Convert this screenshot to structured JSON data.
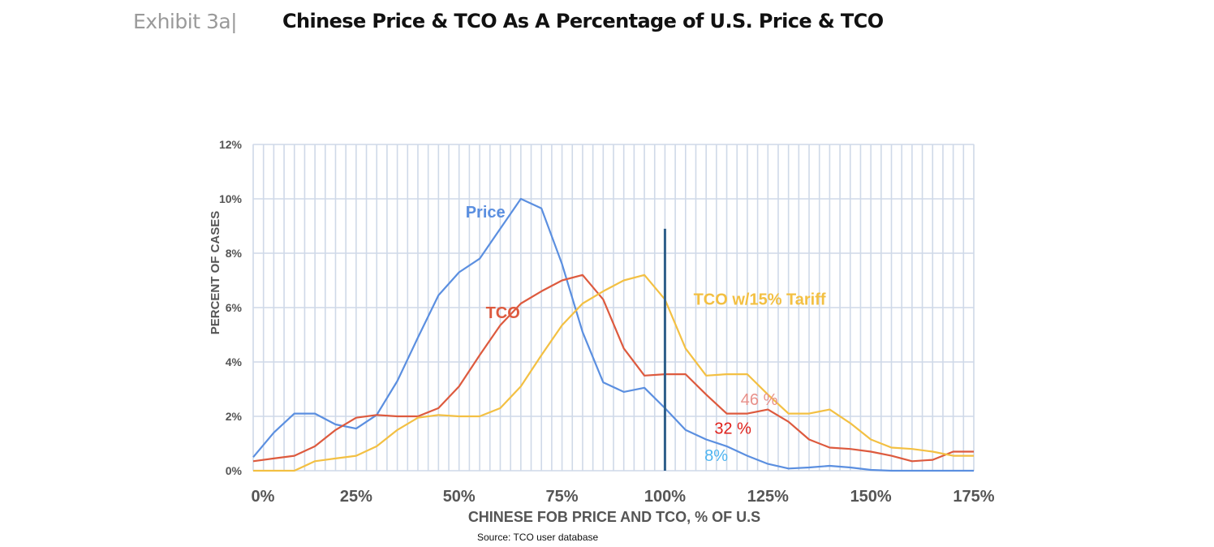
{
  "header": {
    "exhibit_label": "Exhibit 3a|",
    "title": "Chinese Price & TCO As A Percentage of U.S. Price & TCO"
  },
  "source_note": "Source: TCO user database",
  "colors": {
    "price": "#5b8fe0",
    "tco": "#dd5a3e",
    "tco_tariff": "#f3c043",
    "marker": "#2f5f8a",
    "grid": "#cfd9e8",
    "label_46": "#e8908a",
    "label_32": "#e0201a",
    "label_8": "#4fb4f0"
  },
  "chart_data": {
    "type": "line",
    "title": "Chinese Price & TCO As A Percentage of U.S. Price & TCO",
    "xlabel": "CHINESE FOB PRICE AND TCO, % OF U.S",
    "ylabel": "PERCENT OF CASES",
    "xlim": [
      0,
      175
    ],
    "ylim": [
      0,
      12
    ],
    "x_ticks": [
      0,
      25,
      50,
      75,
      100,
      125,
      150,
      175
    ],
    "x_tick_labels": [
      "0%",
      "25%",
      "50%",
      "75%",
      "100%",
      "125%",
      "150%",
      "175%"
    ],
    "y_ticks": [
      0,
      2,
      4,
      6,
      8,
      10,
      12
    ],
    "y_tick_labels": [
      "0%",
      "2%",
      "4%",
      "6%",
      "8%",
      "10%",
      "12%"
    ],
    "vertical_marker_x": 100,
    "x": [
      0,
      5,
      10,
      15,
      20,
      25,
      30,
      35,
      40,
      45,
      50,
      55,
      60,
      65,
      70,
      75,
      80,
      85,
      90,
      95,
      100,
      105,
      110,
      115,
      120,
      125,
      130,
      135,
      140,
      145,
      150,
      155,
      160,
      165,
      170,
      175
    ],
    "series": [
      {
        "name": "Price",
        "label": "Price",
        "values": [
          0.5,
          1.4,
          2.1,
          2.1,
          1.7,
          1.55,
          2.05,
          3.3,
          4.9,
          6.45,
          7.3,
          7.8,
          8.9,
          10.0,
          9.65,
          7.6,
          5.1,
          3.25,
          2.9,
          3.05,
          2.3,
          1.5,
          1.15,
          0.9,
          0.55,
          0.25,
          0.08,
          0.12,
          0.18,
          0.12,
          0.03,
          0.0,
          0.0,
          0.0,
          0.0,
          0.0
        ]
      },
      {
        "name": "TCO",
        "label": "TCO",
        "values": [
          0.35,
          0.45,
          0.55,
          0.9,
          1.5,
          1.95,
          2.05,
          2.0,
          2.0,
          2.3,
          3.1,
          4.25,
          5.35,
          6.15,
          6.6,
          7.0,
          7.2,
          6.3,
          4.5,
          3.5,
          3.55,
          3.55,
          2.8,
          2.1,
          2.1,
          2.25,
          1.8,
          1.15,
          0.85,
          0.8,
          0.7,
          0.55,
          0.35,
          0.4,
          0.7,
          0.7
        ]
      },
      {
        "name": "TCO w/15% Tariff",
        "label": "TCO  w/15% Tariff",
        "values": [
          0.0,
          0.0,
          0.0,
          0.35,
          0.45,
          0.55,
          0.9,
          1.5,
          1.95,
          2.05,
          2.0,
          2.0,
          2.3,
          3.1,
          4.25,
          5.35,
          6.15,
          6.6,
          7.0,
          7.2,
          6.3,
          4.5,
          3.5,
          3.55,
          3.55,
          2.8,
          2.1,
          2.1,
          2.25,
          1.75,
          1.15,
          0.85,
          0.8,
          0.7,
          0.55,
          0.55
        ]
      }
    ],
    "annotations": [
      {
        "text": "46 %",
        "series": "TCO w/15% Tariff"
      },
      {
        "text": "32 %",
        "series": "TCO"
      },
      {
        "text": "8%",
        "series": "Price"
      }
    ]
  }
}
